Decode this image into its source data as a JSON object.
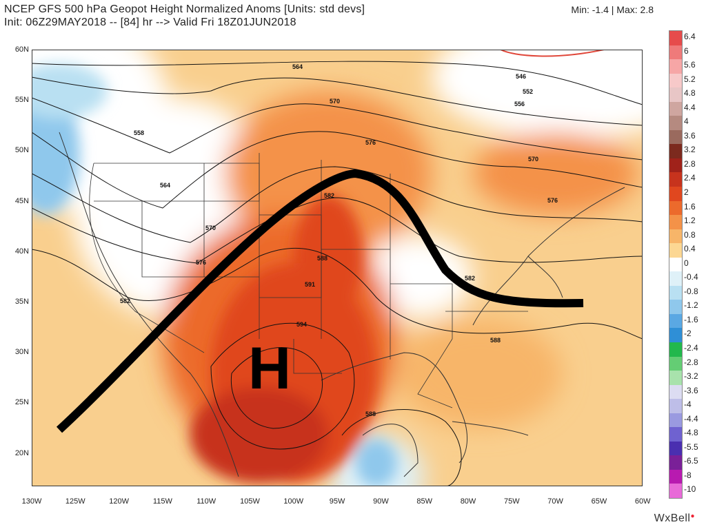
{
  "header": {
    "title_line1": "NCEP GFS 500 hPa Geopot Height Normalized Anoms [Units: std devs]",
    "title_line2": "Init: 06Z29MAY2018 -- [84] hr --> Valid Fri 18Z01JUN2018",
    "minmax": "Min: -1.4 | Max: 2.8"
  },
  "axes": {
    "lat_labels": [
      "60N",
      "55N",
      "50N",
      "45N",
      "40N",
      "35N",
      "30N",
      "25N",
      "20N"
    ],
    "lon_labels": [
      "130W",
      "125W",
      "120W",
      "115W",
      "110W",
      "105W",
      "100W",
      "95W",
      "90W",
      "85W",
      "80W",
      "75W",
      "70W",
      "65W",
      "60W"
    ]
  },
  "colorbar": {
    "labels": [
      "6.4",
      "6",
      "5.6",
      "5.2",
      "4.8",
      "4.4",
      "4",
      "3.6",
      "3.2",
      "2.8",
      "2.4",
      "2",
      "1.6",
      "1.2",
      "0.8",
      "0.4",
      "0",
      "-0.4",
      "-0.8",
      "-1.2",
      "-1.6",
      "-2",
      "-2.4",
      "-2.8",
      "-3.2",
      "-3.6",
      "-4",
      "-4.4",
      "-4.8",
      "-5.5",
      "-6.5",
      "-8",
      "-10"
    ],
    "colors": [
      "#e64b4b",
      "#ef7a7a",
      "#f6a6a6",
      "#f7c9c9",
      "#e8c6c6",
      "#cfa6a0",
      "#b58a80",
      "#9a6a5e",
      "#7c2a1e",
      "#a0221a",
      "#c7331d",
      "#e0471f",
      "#ec6a2c",
      "#f49248",
      "#f7b569",
      "#fcd793",
      "#ffffff",
      "#dff1f8",
      "#b9e0f2",
      "#8fc8ec",
      "#5aa8e3",
      "#2f8fd6",
      "#22b84c",
      "#64cd74",
      "#a8e2ac",
      "#dcdcf2",
      "#bebee8",
      "#9a9ae0",
      "#6f62d0",
      "#4a2fb0",
      "#7a2098",
      "#b81ab0",
      "#e86ad8"
    ]
  },
  "map": {
    "high_label": "H",
    "contour_labels": [
      "564",
      "570",
      "576",
      "582",
      "588",
      "591",
      "594",
      "558",
      "546",
      "552",
      "582",
      "588"
    ],
    "contour_labels_extra": [
      "556",
      "564",
      "570",
      "576",
      "582",
      "570",
      "576",
      "582",
      "588"
    ]
  },
  "logo": {
    "text": "WxBell"
  }
}
